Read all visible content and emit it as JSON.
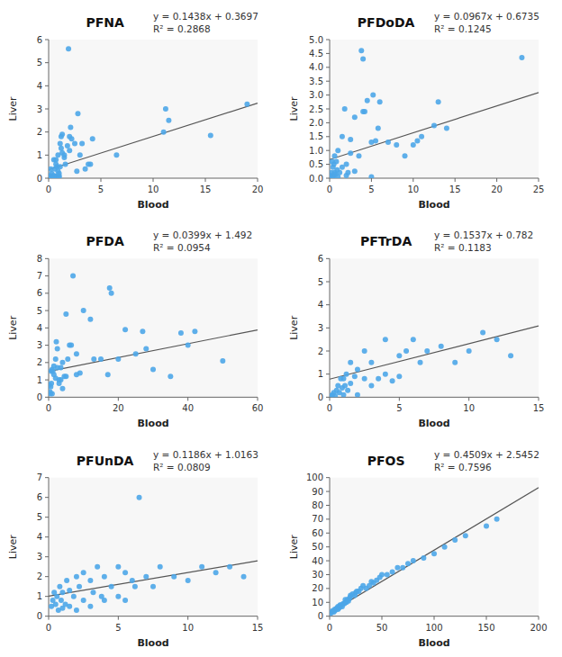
{
  "chart_data": [
    {
      "type": "scatter",
      "title": "PFNA",
      "annotations": [
        "y = 0.1438x + 0.3697",
        "R² = 0.2868"
      ],
      "x_label": "Blood",
      "y_label": "Liver",
      "xlim": [
        0,
        20
      ],
      "ylim": [
        0,
        6
      ],
      "xticks": [
        0,
        5,
        10,
        15,
        20
      ],
      "yticks": [
        0,
        1,
        2,
        3,
        4,
        5,
        6
      ],
      "series": [
        {
          "type": "scatter",
          "color": "#4DA6E8",
          "x": [
            0.1,
            0.2,
            0.2,
            0.3,
            0.3,
            0.4,
            0.4,
            0.5,
            0.5,
            0.6,
            0.6,
            0.7,
            0.7,
            0.8,
            0.8,
            0.9,
            0.9,
            1.0,
            1.0,
            1.0,
            1.1,
            1.1,
            1.2,
            1.2,
            1.3,
            1.3,
            1.5,
            1.5,
            1.6,
            1.8,
            1.9,
            2.0,
            2.0,
            2.1,
            2.2,
            2.5,
            2.7,
            2.8,
            3.0,
            3.2,
            3.5,
            3.8,
            4.0,
            4.2,
            6.5,
            11.0,
            11.2,
            11.5,
            15.5,
            19.0
          ],
          "values": [
            0.1,
            0.1,
            0.4,
            0.05,
            0.2,
            0.05,
            0.1,
            0.8,
            0.1,
            0.1,
            0.4,
            0.6,
            0.8,
            0.1,
            0.5,
            0.3,
            1.0,
            0.05,
            0.1,
            0.2,
            0.5,
            1.5,
            1.3,
            1.8,
            1.1,
            1.9,
            1.0,
            0.9,
            0.6,
            1.4,
            5.6,
            1.2,
            1.8,
            2.2,
            1.7,
            1.5,
            0.3,
            2.8,
            1.0,
            1.5,
            0.4,
            0.6,
            0.6,
            1.7,
            1.0,
            2.0,
            3.0,
            2.5,
            1.85,
            3.2
          ]
        },
        {
          "type": "line",
          "color": "#555555",
          "x": [
            0,
            20
          ],
          "values": [
            0.3697,
            3.2457
          ]
        }
      ]
    },
    {
      "type": "scatter",
      "title": "PFDoDA",
      "annotations": [
        "y = 0.0967x + 0.6735",
        "R² = 0.1245"
      ],
      "x_label": "Blood",
      "y_label": "Liver",
      "xlim": [
        0,
        25
      ],
      "ylim": [
        0,
        5
      ],
      "xticks": [
        0,
        5,
        10,
        15,
        20,
        25
      ],
      "yticks": [
        {
          "value": 0,
          "label": "0.0"
        },
        0.5,
        {
          "value": 1,
          "label": "1.0"
        },
        1.5,
        {
          "value": 2,
          "label": "2.0"
        },
        2.5,
        {
          "value": 3,
          "label": "3.0"
        },
        3.5,
        {
          "value": 4,
          "label": "4.0"
        },
        4.5,
        {
          "value": 5,
          "label": "5.0"
        }
      ],
      "series": [
        {
          "type": "scatter",
          "color": "#4DA6E8",
          "x": [
            0.1,
            0.2,
            0.3,
            0.4,
            0.4,
            0.5,
            0.5,
            0.6,
            0.6,
            0.7,
            0.8,
            0.9,
            1.0,
            1.0,
            1.2,
            1.5,
            1.5,
            1.8,
            2.0,
            2.0,
            2.2,
            2.5,
            2.5,
            3.0,
            3.0,
            3.5,
            3.8,
            4.0,
            4.0,
            4.2,
            4.5,
            5.0,
            5.0,
            5.2,
            5.5,
            5.8,
            6.0,
            7.0,
            8.0,
            9.0,
            10.0,
            10.5,
            11.0,
            12.5,
            13.0,
            14.0,
            23.0
          ],
          "values": [
            0.1,
            0.2,
            0.6,
            0.05,
            0.4,
            0.1,
            0.5,
            0.2,
            0.8,
            0.15,
            0.6,
            0.3,
            0.05,
            1.0,
            0.2,
            0.4,
            1.5,
            2.5,
            0.1,
            0.5,
            0.2,
            0.9,
            1.4,
            0.25,
            2.2,
            0.8,
            4.6,
            4.3,
            2.4,
            2.4,
            2.8,
            1.3,
            0.05,
            3.0,
            1.35,
            1.8,
            2.75,
            1.3,
            1.2,
            0.8,
            1.2,
            1.35,
            1.5,
            1.9,
            2.75,
            1.8,
            4.35
          ]
        },
        {
          "type": "line",
          "color": "#555555",
          "x": [
            0,
            25
          ],
          "values": [
            0.6735,
            3.091
          ]
        }
      ]
    },
    {
      "type": "scatter",
      "title": "PFDA",
      "annotations": [
        "y = 0.0399x + 1.492",
        "R² = 0.0954"
      ],
      "x_label": "Blood",
      "y_label": "Liver",
      "xlim": [
        0,
        60
      ],
      "ylim": [
        0,
        8
      ],
      "xticks": [
        0,
        20,
        40,
        60
      ],
      "yticks": [
        0,
        1,
        2,
        3,
        4,
        5,
        6,
        7,
        8
      ],
      "series": [
        {
          "type": "scatter",
          "color": "#4DA6E8",
          "x": [
            0.2,
            0.4,
            0.5,
            0.6,
            0.7,
            0.8,
            1.0,
            1.0,
            1.2,
            1.5,
            1.5,
            2.0,
            2.0,
            2.2,
            2.5,
            2.5,
            3.0,
            3.0,
            3.5,
            3.5,
            4.0,
            4.0,
            4.5,
            5.0,
            5.0,
            5.5,
            6.0,
            6.5,
            7.0,
            8.0,
            8.0,
            9.0,
            10.0,
            12.0,
            13.0,
            15.0,
            17.0,
            17.5,
            18.0,
            20.0,
            22.0,
            25.0,
            27.0,
            28.0,
            30.0,
            35.0,
            38.0,
            40.0,
            42.0,
            50.0
          ],
          "values": [
            0.7,
            0.3,
            0.2,
            0.6,
            1.5,
            0.8,
            0.2,
            1.6,
            1.5,
            1.8,
            1.3,
            2.2,
            1.1,
            3.2,
            2.8,
            1.7,
            1.0,
            0.8,
            1.0,
            1.7,
            0.5,
            2.0,
            1.2,
            1.2,
            4.8,
            2.2,
            3.0,
            3.0,
            7.0,
            1.3,
            2.5,
            1.4,
            5.0,
            4.5,
            2.2,
            2.2,
            1.3,
            6.3,
            6.0,
            2.2,
            3.9,
            2.5,
            3.8,
            2.8,
            1.6,
            1.2,
            3.7,
            3.0,
            3.8,
            2.1
          ]
        },
        {
          "type": "line",
          "color": "#555555",
          "x": [
            0,
            60
          ],
          "values": [
            1.492,
            3.886
          ]
        }
      ]
    },
    {
      "type": "scatter",
      "title": "PFTrDA",
      "annotations": [
        "y = 0.1537x + 0.782",
        "R² = 0.1183"
      ],
      "x_label": "Blood",
      "y_label": "Liver",
      "xlim": [
        0,
        15
      ],
      "ylim": [
        0,
        6
      ],
      "xticks": [
        0,
        5,
        10,
        15
      ],
      "yticks": [
        0,
        1,
        2,
        3,
        4,
        5,
        6
      ],
      "series": [
        {
          "type": "scatter",
          "color": "#4DA6E8",
          "x": [
            0.1,
            0.2,
            0.3,
            0.4,
            0.5,
            0.6,
            0.7,
            0.8,
            0.9,
            1.0,
            1.0,
            1.1,
            1.2,
            1.3,
            1.5,
            1.5,
            1.8,
            2.0,
            2.0,
            2.5,
            2.5,
            3.0,
            3.0,
            3.5,
            4.0,
            4.0,
            4.5,
            5.0,
            5.0,
            5.5,
            6.0,
            6.5,
            7.0,
            8.0,
            9.0,
            10.0,
            11.0,
            12.0,
            13.0
          ],
          "values": [
            0.05,
            0.1,
            0.2,
            0.05,
            0.3,
            0.5,
            0.2,
            0.8,
            0.4,
            0.1,
            0.8,
            0.5,
            1.0,
            0.3,
            0.6,
            1.5,
            0.9,
            0.1,
            1.2,
            0.8,
            2.0,
            0.5,
            1.5,
            0.8,
            1.0,
            2.5,
            0.7,
            1.8,
            0.9,
            2.0,
            2.5,
            1.5,
            2.0,
            2.2,
            1.5,
            2.0,
            2.8,
            2.5,
            1.8
          ]
        },
        {
          "type": "line",
          "color": "#555555",
          "x": [
            0,
            15
          ],
          "values": [
            0.782,
            3.0875
          ]
        }
      ]
    },
    {
      "type": "scatter",
      "title": "PFUnDA",
      "annotations": [
        "y = 0.1186x + 1.0163",
        "R² = 0.0809"
      ],
      "x_label": "Blood",
      "y_label": "Liver",
      "xlim": [
        0,
        15
      ],
      "ylim": [
        0,
        7
      ],
      "xticks": [
        0,
        5,
        10,
        15
      ],
      "yticks": [
        0,
        1,
        2,
        3,
        4,
        5,
        6,
        7
      ],
      "series": [
        {
          "type": "scatter",
          "color": "#4DA6E8",
          "x": [
            0.2,
            0.3,
            0.4,
            0.5,
            0.6,
            0.7,
            0.8,
            0.9,
            1.0,
            1.0,
            1.2,
            1.3,
            1.5,
            1.5,
            1.8,
            2.0,
            2.0,
            2.2,
            2.5,
            2.5,
            3.0,
            3.0,
            3.2,
            3.5,
            3.8,
            4.0,
            4.0,
            4.5,
            5.0,
            5.0,
            5.5,
            5.5,
            6.0,
            6.2,
            6.5,
            7.0,
            7.5,
            8.0,
            9.0,
            10.0,
            11.0,
            12.0,
            13.0,
            14.0
          ],
          "values": [
            0.5,
            0.8,
            1.2,
            0.6,
            1.0,
            0.3,
            1.5,
            0.8,
            0.4,
            1.2,
            0.6,
            1.8,
            0.5,
            1.3,
            1.0,
            0.3,
            2.0,
            1.5,
            0.8,
            2.2,
            0.5,
            1.8,
            1.2,
            2.5,
            1.0,
            0.8,
            2.0,
            1.5,
            1.0,
            2.5,
            0.8,
            2.2,
            1.8,
            1.5,
            6.0,
            2.0,
            1.5,
            2.5,
            2.0,
            1.8,
            2.5,
            2.2,
            2.5,
            2.0
          ]
        },
        {
          "type": "line",
          "color": "#555555",
          "x": [
            0,
            15
          ],
          "values": [
            1.0163,
            2.7953
          ]
        }
      ]
    },
    {
      "type": "scatter",
      "title": "PFOS",
      "annotations": [
        "y = 0.4509x + 2.5452",
        "R² = 0.7596"
      ],
      "x_label": "Blood",
      "y_label": "Liver",
      "xlim": [
        0,
        200
      ],
      "ylim": [
        0,
        100
      ],
      "xticks": [
        0,
        50,
        100,
        150,
        200
      ],
      "yticks": [
        0,
        10,
        20,
        30,
        40,
        50,
        60,
        70,
        80,
        90,
        100
      ],
      "series": [
        {
          "type": "scatter",
          "color": "#4DA6E8",
          "x": [
            1,
            2,
            3,
            4,
            5,
            5,
            6,
            7,
            8,
            8,
            9,
            10,
            10,
            11,
            12,
            13,
            14,
            15,
            15,
            16,
            17,
            18,
            19,
            20,
            20,
            22,
            24,
            25,
            26,
            28,
            30,
            32,
            35,
            38,
            40,
            42,
            45,
            48,
            50,
            55,
            60,
            65,
            70,
            75,
            80,
            90,
            100,
            110,
            120,
            130,
            150,
            160
          ],
          "values": [
            2,
            3,
            4,
            3,
            5,
            4,
            5,
            6,
            5,
            7,
            6,
            7,
            8,
            8,
            7,
            9,
            9,
            10,
            12,
            10,
            12,
            11,
            13,
            14,
            15,
            16,
            15,
            17,
            18,
            18,
            20,
            22,
            20,
            22,
            25,
            24,
            26,
            28,
            30,
            30,
            32,
            35,
            35,
            38,
            40,
            42,
            45,
            50,
            55,
            58,
            65,
            70
          ]
        },
        {
          "type": "line",
          "color": "#555555",
          "x": [
            0,
            200
          ],
          "values": [
            2.5452,
            92.7252
          ]
        }
      ]
    }
  ]
}
